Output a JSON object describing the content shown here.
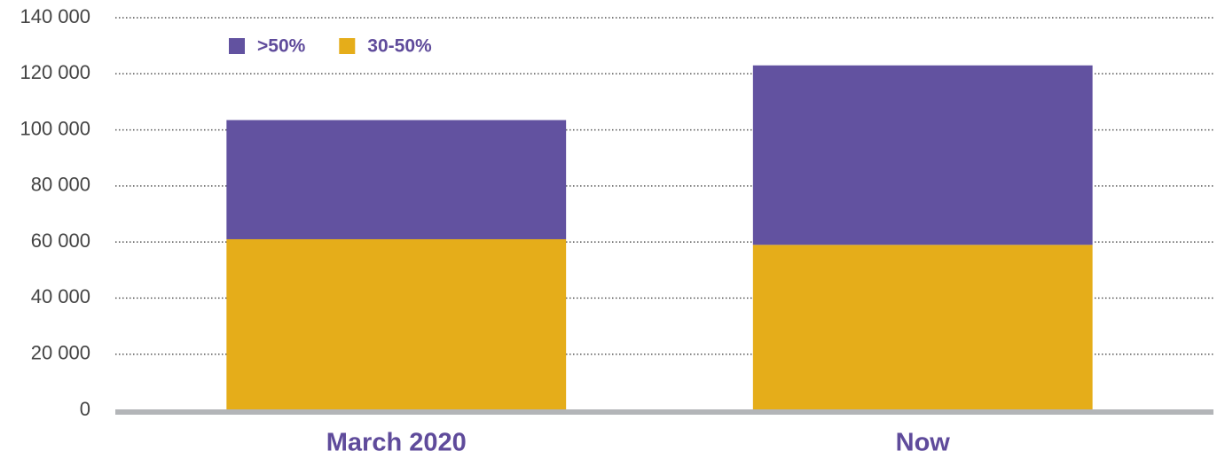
{
  "chart_data": {
    "type": "stacked_bar",
    "categories": [
      "March 2020",
      "Now"
    ],
    "series": [
      {
        "name": ">50%",
        "color": "#6252a0",
        "values": [
          42500,
          64000
        ]
      },
      {
        "name": "30-50%",
        "color": "#e5ad1a",
        "values": [
          61000,
          59000
        ]
      }
    ],
    "ylim": [
      0,
      140000
    ],
    "yticks": [
      0,
      {
        "value": 20000,
        "label": "20 000"
      },
      {
        "value": 40000,
        "label": "40 000"
      },
      {
        "value": 60000,
        "label": "60 000"
      },
      {
        "value": 80000,
        "label": "80 000"
      },
      {
        "value": 100000,
        "label": "100 000"
      },
      {
        "value": 120000,
        "label": "120 000"
      },
      {
        "value": 140000,
        "label": "140 000"
      }
    ],
    "grid": true,
    "legend": "top-left"
  }
}
